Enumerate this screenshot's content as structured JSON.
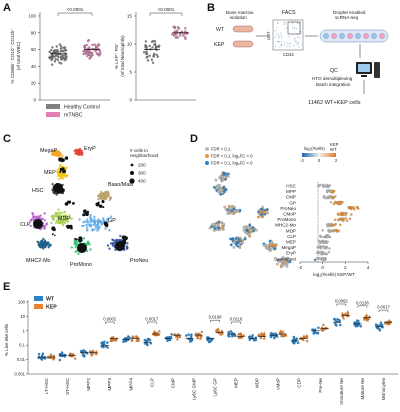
{
  "panels": [
    "A",
    "B",
    "C",
    "D",
    "E"
  ],
  "colors": {
    "healthy": "#7f7f7f",
    "mtnbc": "#e37fb6",
    "wt": "#2b83c6",
    "kep": "#e8822e",
    "fdr_gray": "#bdbdbd",
    "fdr_orange": "#f09a3a",
    "fdr_blue": "#2b83c6"
  },
  "panel_a": {
    "left_ylabel": "% CD66b⁺ CD10⁻ CD11b⁺\n(of total WBC)",
    "right_ylabel": "% LAP⁺ FN⁺\n(of total Neutrophils)",
    "left_p": "<0.0001",
    "right_p": "<0.0001",
    "left_yticks": [
      "0",
      "20",
      "40",
      "60",
      "80",
      "100"
    ],
    "right_yticks": [
      "0",
      "5",
      "10",
      "15"
    ],
    "legend": [
      {
        "label": "Healthy Control",
        "color_key": "healthy"
      },
      {
        "label": "mTNBC",
        "color_key": "mtnbc"
      }
    ],
    "chart_data": [
      {
        "type": "scatter",
        "title": "",
        "ylabel": "% CD66b+ CD10- CD11b+ (of total WBC)",
        "categories": [
          "Healthy Control",
          "mTNBC"
        ],
        "ylim": [
          0,
          100
        ],
        "series": [
          {
            "name": "Healthy Control",
            "median": 55
          },
          {
            "name": "mTNBC",
            "median": 60
          }
        ]
      },
      {
        "type": "scatter",
        "title": "",
        "ylabel": "% LAP+ FN+ (of total Neutrophils)",
        "categories": [
          "Healthy Control",
          "mTNBC"
        ],
        "ylim": [
          0,
          15
        ],
        "series": [
          {
            "name": "Healthy Control",
            "median": 9
          },
          {
            "name": "mTNBC",
            "median": 12
          }
        ]
      }
    ]
  },
  "panel_b": {
    "bm_isolation": "Bone marrow\nisolation",
    "wt": "WT",
    "kep": "KEP",
    "facs": "FACS",
    "ckit": "cKIT",
    "cd34": "CD34",
    "droplet": "Droplet enabled\nscRNA-seq",
    "qc": "QC",
    "hto": "HTO demultiplexing\nBatch integration",
    "cells": "11462 WT+KEP cells"
  },
  "panel_c": {
    "legend_title": "# cells in\nneighborhood",
    "legend_sizes": [
      "200",
      "300",
      "400"
    ],
    "clusters": [
      {
        "name": "MegaP",
        "color": "#f5a623"
      },
      {
        "name": "EryP",
        "color": "#e0443b"
      },
      {
        "name": "MEP",
        "color": "#f0c419"
      },
      {
        "name": "HSC",
        "color": "#3a3a3a"
      },
      {
        "name": "Baso/Mast",
        "color": "#bba36f"
      },
      {
        "name": "CLP",
        "color": "#b35fc5"
      },
      {
        "name": "MDP",
        "color": "#a6cf50"
      },
      {
        "name": "GP",
        "color": "#5aa9e6"
      },
      {
        "name": "MHC2-Mo",
        "color": "#1f5f8b"
      },
      {
        "name": "ProMono",
        "color": "#2bbf6e"
      },
      {
        "name": "ProNeu",
        "color": "#2f4a9a"
      }
    ]
  },
  "panel_d": {
    "legend": [
      {
        "label": "FDR > 0.1",
        "color_key": "fdr_gray"
      },
      {
        "label": "FDR < 0.1, log₂FC > 0",
        "color_key": "fdr_orange"
      },
      {
        "label": "FDR < 0.1, log₂FC < 0",
        "color_key": "fdr_blue"
      }
    ],
    "colorbar_title": "log₂(#cells)",
    "colorbar_end": "KEP\nWT",
    "colorbar_ticks": [
      "-2",
      "0",
      "2"
    ],
    "xlabel": "log₂(#cells) KEP/WT",
    "xticks": [
      "-2",
      "0",
      "2",
      "4"
    ],
    "chart_data": {
      "type": "scatter",
      "title": "",
      "xlabel": "log2(#cells) KEP/WT",
      "categories": [
        "HSC",
        "MPP",
        "CMP",
        "GP",
        "ProNeu",
        "CMoP",
        "ProMono",
        "MHC2-Mo",
        "MDP",
        "CLP",
        "MEP",
        "MegaP",
        "EryP",
        "Baso/Mast"
      ],
      "xlim": [
        -2,
        4
      ],
      "approx_center": [
        0.2,
        0.6,
        0.8,
        1.5,
        2.6,
        1.8,
        1.7,
        0.9,
        0.8,
        0.2,
        0.1,
        0.0,
        0.0,
        0.1
      ]
    }
  },
  "panel_e": {
    "legend": [
      {
        "label": "WT",
        "color_key": "wt"
      },
      {
        "label": "KEP",
        "color_key": "kep"
      }
    ],
    "ylabel": "% Live BM cells",
    "yticks": [
      "0.001",
      "0.01",
      "0.1",
      "1",
      "10",
      "100"
    ],
    "pvalues": [
      {
        "label": "0.0002",
        "between": "MPP3"
      },
      {
        "label": "0.0017",
        "between": "CLP"
      },
      {
        "label": "0.0199",
        "between": "Ly6C GP"
      },
      {
        "label": "0.0116",
        "between": "MEP"
      },
      {
        "label": "0.0062",
        "between": "Immature Ne"
      },
      {
        "label": "0.0136",
        "between": "Mature Ne"
      },
      {
        "label": "0.0017",
        "between": "Monocytes"
      }
    ],
    "chart_data": {
      "type": "scatter",
      "title": "",
      "ylabel": "% Live BM cells",
      "yscale": "log",
      "ylim": [
        0.001,
        100
      ],
      "categories": [
        "LT-HSC",
        "ST-HSC",
        "MPP2",
        "MPP3",
        "MPP4",
        "CLP",
        "CMP",
        "Ly6C GMP",
        "Ly6C GP",
        "MEP",
        "MDP",
        "cMoP",
        "CDP",
        "Pre-Ne",
        "Immature Ne",
        "Mature Ne",
        "Monocytes"
      ],
      "series": [
        {
          "name": "WT",
          "median": [
            0.015,
            0.02,
            0.03,
            0.1,
            0.25,
            0.15,
            0.3,
            0.3,
            0.3,
            0.6,
            0.3,
            0.5,
            0.2,
            1.0,
            4.0,
            3.0,
            2.0
          ]
        },
        {
          "name": "KEP",
          "median": [
            0.015,
            0.02,
            0.03,
            0.3,
            0.3,
            0.6,
            0.5,
            0.5,
            0.8,
            0.4,
            0.4,
            0.6,
            0.3,
            1.5,
            12.0,
            8.0,
            4.0
          ]
        }
      ]
    }
  }
}
